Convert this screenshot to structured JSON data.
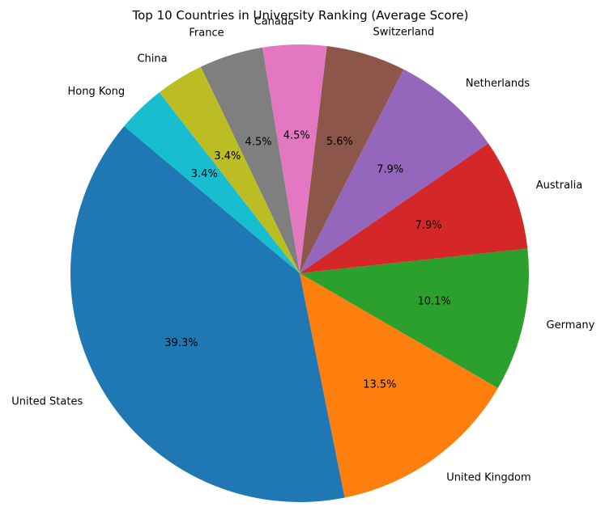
{
  "chart_data": {
    "type": "pie",
    "title": "Top 10 Countries in University Ranking (Average Score)",
    "slices": [
      {
        "label": "United States",
        "percent": 39.3,
        "percent_label": "39.3%",
        "color": "#1f77b4"
      },
      {
        "label": "United Kingdom",
        "percent": 13.5,
        "percent_label": "13.5%",
        "color": "#ff7f0e"
      },
      {
        "label": "Germany",
        "percent": 10.1,
        "percent_label": "10.1%",
        "color": "#2ca02c"
      },
      {
        "label": "Australia",
        "percent": 7.9,
        "percent_label": "7.9%",
        "color": "#d62728"
      },
      {
        "label": "Netherlands",
        "percent": 7.9,
        "percent_label": "7.9%",
        "color": "#9467bd"
      },
      {
        "label": "Switzerland",
        "percent": 5.6,
        "percent_label": "5.6%",
        "color": "#8c564b"
      },
      {
        "label": "Canada",
        "percent": 4.5,
        "percent_label": "4.5%",
        "color": "#e377c2"
      },
      {
        "label": "France",
        "percent": 4.5,
        "percent_label": "4.5%",
        "color": "#7f7f7f"
      },
      {
        "label": "China",
        "percent": 3.4,
        "percent_label": "3.4%",
        "color": "#bcbd22"
      },
      {
        "label": "Hong Kong",
        "percent": 3.4,
        "percent_label": "3.4%",
        "color": "#17becf"
      }
    ],
    "start_angle_deg": 140,
    "direction": "counterclockwise",
    "legend": "none"
  }
}
